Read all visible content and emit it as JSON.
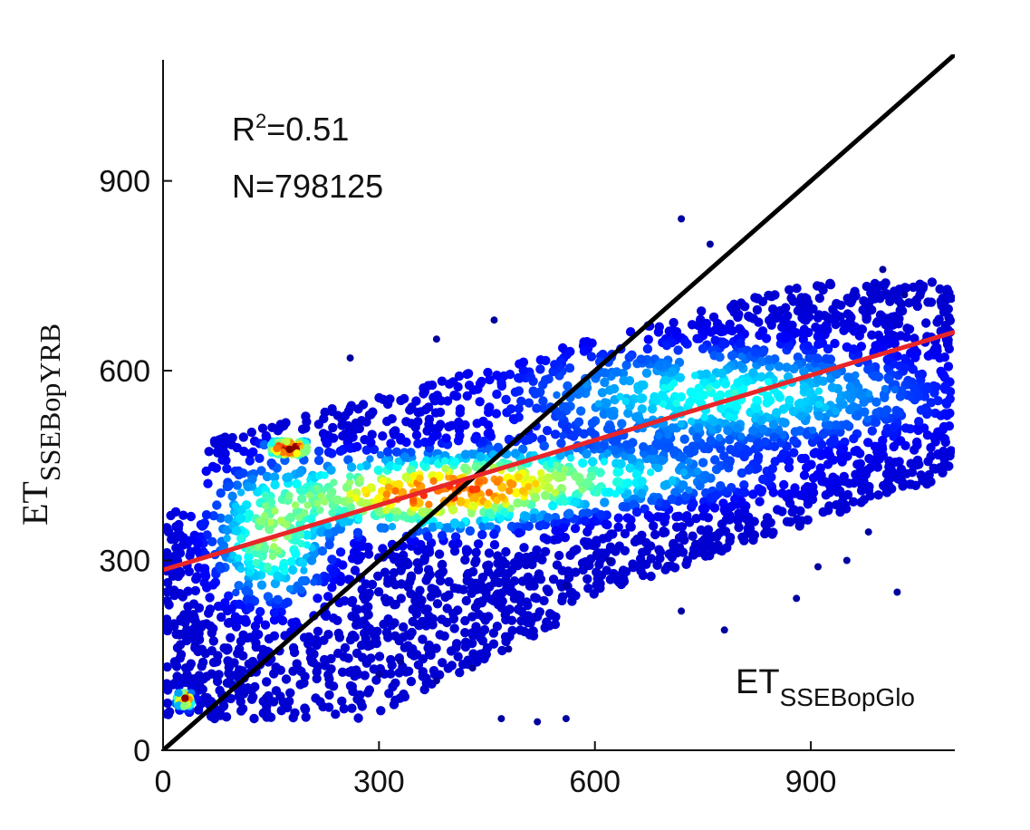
{
  "chart_data": {
    "type": "scatter",
    "subtype": "density-scatter",
    "title": "",
    "xlabel": {
      "main": "ET",
      "sub": "SSEBopGlo"
    },
    "ylabel": {
      "main": "ET",
      "sub": "SSEBopYRB"
    },
    "xlim": [
      0,
      1100
    ],
    "ylim": [
      0,
      1100
    ],
    "xticks": [
      0,
      300,
      600,
      900
    ],
    "yticks": [
      0,
      300,
      600,
      900
    ],
    "grid": false,
    "annotations": {
      "r2_prefix": "R",
      "r2_sup": "2",
      "r2_value": "=0.51",
      "n_text": "N=798125"
    },
    "one_to_one_line": {
      "color": "#000000",
      "from": [
        0,
        0
      ],
      "to": [
        1100,
        1100
      ]
    },
    "fit_line": {
      "color": "#e8262a",
      "intercept": 285,
      "slope": 0.342
    },
    "colormap": [
      "#00008f",
      "#0000ff",
      "#0080ff",
      "#00ffff",
      "#80ff80",
      "#ffff00",
      "#ff8000",
      "#ff0000",
      "#800000"
    ],
    "density_clusters": [
      {
        "x": 175,
        "y": 478,
        "sx": 18,
        "sy": 8,
        "peak": 1.0
      },
      {
        "x": 30,
        "y": 80,
        "sx": 7,
        "sy": 8,
        "peak": 0.95
      },
      {
        "x": 360,
        "y": 395,
        "sx": 120,
        "sy": 30,
        "peak": 0.55
      },
      {
        "x": 500,
        "y": 430,
        "sx": 180,
        "sy": 30,
        "peak": 0.45
      },
      {
        "x": 150,
        "y": 330,
        "sx": 50,
        "sy": 60,
        "peak": 0.45
      },
      {
        "x": 780,
        "y": 560,
        "sx": 180,
        "sy": 50,
        "peak": 0.35
      }
    ],
    "outlier_points": [
      [
        720,
        840
      ],
      [
        760,
        800
      ],
      [
        1000,
        760
      ],
      [
        1030,
        720
      ],
      [
        980,
        345
      ],
      [
        1020,
        250
      ],
      [
        950,
        300
      ],
      [
        910,
        290
      ],
      [
        880,
        240
      ],
      [
        780,
        190
      ],
      [
        720,
        220
      ],
      [
        620,
        300
      ],
      [
        560,
        260
      ],
      [
        480,
        160
      ],
      [
        430,
        130
      ],
      [
        380,
        110
      ],
      [
        330,
        140
      ],
      [
        300,
        120
      ],
      [
        560,
        50
      ],
      [
        520,
        45
      ],
      [
        470,
        50
      ],
      [
        260,
        620
      ],
      [
        380,
        650
      ],
      [
        460,
        680
      ]
    ]
  }
}
